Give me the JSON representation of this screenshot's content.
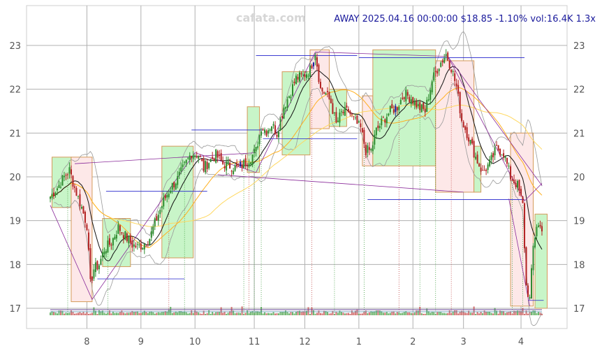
{
  "header": {
    "watermark": "cafata.com",
    "quote": "AWAY 2025.04.16 00:00:00 $18.85 -1.10% vol:16.4K 1.3x"
  },
  "chart_data": {
    "type": "candlestick",
    "symbol": "AWAY",
    "title": "AWAY 2025.04.16 00:00:00 $18.85 -1.10% vol:16.4K 1.3x",
    "last_close": 18.85,
    "change_pct": -1.1,
    "volume": "16.4K",
    "volume_ratio": "1.3x",
    "ylim": [
      16.55,
      23.9
    ],
    "y_ticks": [
      17,
      18,
      19,
      20,
      21,
      22,
      23
    ],
    "x_tick_labels": [
      "8",
      "9",
      "10",
      "11",
      "12",
      "1",
      "2",
      "3",
      "4"
    ],
    "x_tick_days": [
      21,
      52,
      83,
      117,
      146,
      177,
      208,
      237,
      270
    ],
    "x_range_days": [
      0,
      282
    ],
    "grid": true,
    "colors": {
      "up": "#2e8b2e",
      "down": "#b22222",
      "grid": "#b0b0b0",
      "up_box": "#c8f5c8",
      "down_box": "#fde8e8",
      "box_border": "#d59a5a",
      "ma_short": "#111111",
      "ma_mid": "#ffb020",
      "ma_long": "#ffd860",
      "band": "#999999",
      "trend": "#8a2b9a",
      "level": "#2222cc"
    },
    "close_series": [
      {
        "day": 0,
        "close": 19.55
      },
      {
        "day": 4,
        "close": 19.75
      },
      {
        "day": 8,
        "close": 20.0
      },
      {
        "day": 11,
        "close": 20.15
      },
      {
        "day": 14,
        "close": 19.75
      },
      {
        "day": 18,
        "close": 19.3
      },
      {
        "day": 21,
        "close": 18.9
      },
      {
        "day": 23,
        "close": 17.55
      },
      {
        "day": 25,
        "close": 17.9
      },
      {
        "day": 28,
        "close": 18.0
      },
      {
        "day": 31,
        "close": 18.35
      },
      {
        "day": 35,
        "close": 18.5
      },
      {
        "day": 39,
        "close": 18.85
      },
      {
        "day": 43,
        "close": 18.65
      },
      {
        "day": 47,
        "close": 18.45
      },
      {
        "day": 50,
        "close": 18.4
      },
      {
        "day": 53,
        "close": 18.45
      },
      {
        "day": 57,
        "close": 18.6
      },
      {
        "day": 61,
        "close": 19.05
      },
      {
        "day": 65,
        "close": 19.45
      },
      {
        "day": 69,
        "close": 19.75
      },
      {
        "day": 73,
        "close": 19.95
      },
      {
        "day": 77,
        "close": 20.25
      },
      {
        "day": 81,
        "close": 20.55
      },
      {
        "day": 85,
        "close": 20.5
      },
      {
        "day": 88,
        "close": 20.2
      },
      {
        "day": 91,
        "close": 20.35
      },
      {
        "day": 95,
        "close": 20.5
      },
      {
        "day": 99,
        "close": 20.3
      },
      {
        "day": 103,
        "close": 20.25
      },
      {
        "day": 107,
        "close": 20.2
      },
      {
        "day": 111,
        "close": 20.3
      },
      {
        "day": 115,
        "close": 20.45
      },
      {
        "day": 118,
        "close": 20.6
      },
      {
        "day": 121,
        "close": 21.15
      },
      {
        "day": 124,
        "close": 21.05
      },
      {
        "day": 127,
        "close": 21.2
      },
      {
        "day": 130,
        "close": 21.0
      },
      {
        "day": 134,
        "close": 21.6
      },
      {
        "day": 138,
        "close": 21.95
      },
      {
        "day": 141,
        "close": 22.25
      },
      {
        "day": 145,
        "close": 22.3
      },
      {
        "day": 149,
        "close": 22.45
      },
      {
        "day": 152,
        "close": 22.85
      },
      {
        "day": 155,
        "close": 22.0
      },
      {
        "day": 158,
        "close": 21.9
      },
      {
        "day": 161,
        "close": 21.7
      },
      {
        "day": 164,
        "close": 21.2
      },
      {
        "day": 167,
        "close": 21.45
      },
      {
        "day": 171,
        "close": 21.5
      },
      {
        "day": 174,
        "close": 21.3
      },
      {
        "day": 178,
        "close": 21.1
      },
      {
        "day": 181,
        "close": 20.6
      },
      {
        "day": 184,
        "close": 20.6
      },
      {
        "day": 187,
        "close": 21.05
      },
      {
        "day": 191,
        "close": 21.3
      },
      {
        "day": 195,
        "close": 21.5
      },
      {
        "day": 199,
        "close": 21.6
      },
      {
        "day": 203,
        "close": 21.9
      },
      {
        "day": 207,
        "close": 21.8
      },
      {
        "day": 211,
        "close": 21.6
      },
      {
        "day": 215,
        "close": 21.5
      },
      {
        "day": 219,
        "close": 22.2
      },
      {
        "day": 223,
        "close": 22.55
      },
      {
        "day": 227,
        "close": 22.8
      },
      {
        "day": 230,
        "close": 22.5
      },
      {
        "day": 233,
        "close": 22.05
      },
      {
        "day": 236,
        "close": 21.3
      },
      {
        "day": 240,
        "close": 20.9
      },
      {
        "day": 244,
        "close": 20.45
      },
      {
        "day": 248,
        "close": 20.1
      },
      {
        "day": 252,
        "close": 20.3
      },
      {
        "day": 256,
        "close": 20.65
      },
      {
        "day": 260,
        "close": 20.55
      },
      {
        "day": 264,
        "close": 20.0
      },
      {
        "day": 268,
        "close": 19.8
      },
      {
        "day": 271,
        "close": 19.35
      },
      {
        "day": 273,
        "close": 17.5
      },
      {
        "day": 275,
        "close": 17.2
      },
      {
        "day": 277,
        "close": 18.4
      },
      {
        "day": 279,
        "close": 18.9
      },
      {
        "day": 281,
        "close": 18.85
      }
    ],
    "zones": [
      {
        "start_day": 1,
        "end_day": 12,
        "low": 19.3,
        "high": 20.45,
        "direction": "up"
      },
      {
        "start_day": 12,
        "end_day": 24,
        "low": 17.15,
        "high": 20.45,
        "direction": "down"
      },
      {
        "start_day": 30,
        "end_day": 46,
        "low": 17.95,
        "high": 19.05,
        "direction": "up"
      },
      {
        "start_day": 64,
        "end_day": 82,
        "low": 18.15,
        "high": 20.7,
        "direction": "up"
      },
      {
        "start_day": 113,
        "end_day": 120,
        "low": 20.1,
        "high": 21.6,
        "direction": "up"
      },
      {
        "start_day": 133,
        "end_day": 149,
        "low": 20.5,
        "high": 22.4,
        "direction": "up"
      },
      {
        "start_day": 149,
        "end_day": 160,
        "low": 21.1,
        "high": 22.9,
        "direction": "down"
      },
      {
        "start_day": 160,
        "end_day": 170,
        "low": 21.15,
        "high": 22.0,
        "direction": "up"
      },
      {
        "start_day": 179,
        "end_day": 185,
        "low": 20.25,
        "high": 21.85,
        "direction": "down"
      },
      {
        "start_day": 185,
        "end_day": 221,
        "low": 20.25,
        "high": 22.9,
        "direction": "up"
      },
      {
        "start_day": 221,
        "end_day": 243,
        "low": 19.65,
        "high": 22.65,
        "direction": "down"
      },
      {
        "start_day": 243,
        "end_day": 247,
        "low": 19.65,
        "high": 20.7,
        "direction": "up"
      },
      {
        "start_day": 264,
        "end_day": 277,
        "low": 17.05,
        "high": 21.0,
        "direction": "down"
      },
      {
        "start_day": 278,
        "end_day": 285,
        "low": 17.0,
        "high": 19.15,
        "direction": "up"
      }
    ],
    "levels": [
      {
        "start_day": 32,
        "end_day": 90,
        "value": 19.67
      },
      {
        "start_day": 27,
        "end_day": 77,
        "value": 17.67
      },
      {
        "start_day": 81,
        "end_day": 122,
        "value": 21.07
      },
      {
        "start_day": 122,
        "end_day": 176,
        "value": 20.87
      },
      {
        "start_day": 118,
        "end_day": 176,
        "value": 22.77
      },
      {
        "start_day": 177,
        "end_day": 272,
        "value": 22.72
      },
      {
        "start_day": 182,
        "end_day": 272,
        "value": 19.48
      },
      {
        "start_day": 274,
        "end_day": 283,
        "value": 17.18
      }
    ],
    "trendlines": [
      {
        "points": [
          [
            0,
            19.35
          ],
          [
            24,
            17.2
          ],
          [
            46,
            18.45
          ],
          [
            83,
            20.55
          ],
          [
            118,
            20.1
          ],
          [
            152,
            22.85
          ],
          [
            228,
            22.75
          ],
          [
            272,
            19.45
          ],
          [
            282,
            19.85
          ]
        ]
      },
      {
        "points": [
          [
            14,
            20.3
          ],
          [
            118,
            20.55
          ]
        ]
      },
      {
        "points": [
          [
            96,
            20.05
          ],
          [
            237,
            19.65
          ]
        ]
      },
      {
        "points": [
          [
            228,
            22.75
          ],
          [
            282,
            19.8
          ]
        ]
      },
      {
        "points": [
          [
            263,
            19.5
          ],
          [
            275,
            17.05
          ]
        ]
      }
    ]
  }
}
